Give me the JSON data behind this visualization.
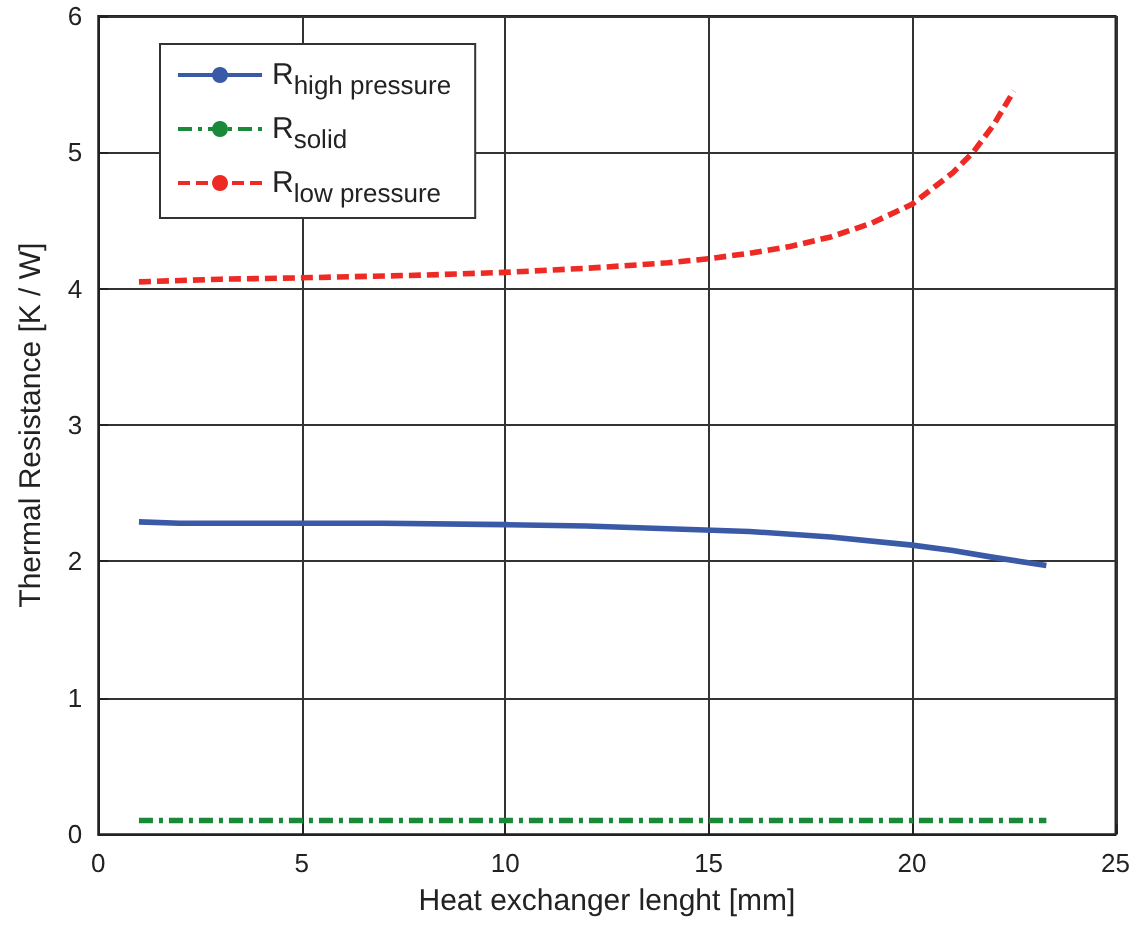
{
  "chart_data": {
    "type": "line",
    "xlabel": "Heat exchanger lenght [mm]",
    "ylabel": "Thermal Resistance [K / W]",
    "xlim": [
      0,
      25
    ],
    "xticks": [
      0,
      5,
      10,
      15,
      20,
      25
    ],
    "ylim": [
      0,
      6
    ],
    "yticks": [
      0,
      1,
      2,
      3,
      4,
      5,
      6
    ],
    "grid": true,
    "legend": "top left",
    "marker": "none",
    "series": [
      {
        "name": "R$_{high pressure}$",
        "color": "#3a5aa8",
        "line_style": "solid",
        "x": [
          1,
          2,
          4,
          7,
          10,
          12,
          14,
          16,
          18,
          20,
          21,
          22,
          23.3
        ],
        "values": [
          2.29,
          2.28,
          2.28,
          2.28,
          2.27,
          2.26,
          2.24,
          2.22,
          2.18,
          2.12,
          2.08,
          2.03,
          1.97
        ]
      },
      {
        "name": "R$_{solid}$",
        "color": "#1a8a3a",
        "line_style": "dashdot",
        "x": [
          1,
          23.3
        ],
        "values": [
          0.1,
          0.1
        ]
      },
      {
        "name": "R$_{low pressure}$",
        "color": "#ee2a24",
        "line_style": "dashed",
        "x": [
          1,
          3,
          5,
          8,
          10,
          12,
          14,
          15,
          16,
          17,
          18,
          19,
          20,
          21,
          21.5,
          22,
          22.5
        ],
        "values": [
          4.05,
          4.07,
          4.08,
          4.1,
          4.12,
          4.15,
          4.19,
          4.22,
          4.26,
          4.31,
          4.38,
          4.48,
          4.62,
          4.85,
          5.0,
          5.2,
          5.45
        ]
      }
    ]
  }
}
